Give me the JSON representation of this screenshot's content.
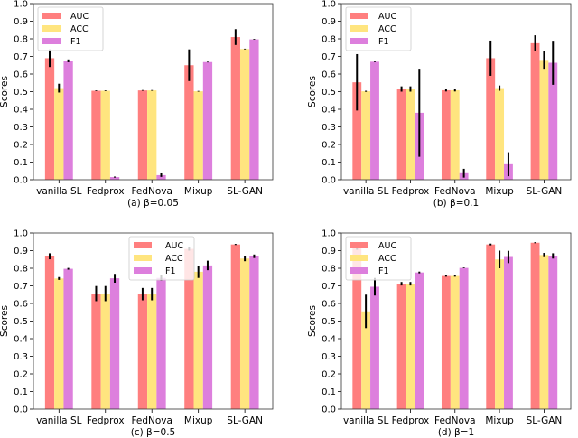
{
  "chart_data": [
    {
      "type": "bar",
      "caption": "(a) β=0.05",
      "ylabel": "Scores",
      "ylim": [
        0,
        1.0
      ],
      "yticks": [
        "0.0",
        "0.1",
        "0.2",
        "0.3",
        "0.4",
        "0.5",
        "0.6",
        "0.7",
        "0.8",
        "0.9",
        "1.0"
      ],
      "categories": [
        "vanilla SL",
        "Fedprox",
        "FedNova",
        "Mixup",
        "SL-GAN"
      ],
      "legend_position": "top-left",
      "series": [
        {
          "name": "AUC",
          "color": "#ff7f7f",
          "values": [
            0.69,
            0.505,
            0.507,
            0.65,
            0.81
          ],
          "errors": [
            0.05,
            0.002,
            0.002,
            0.09,
            0.045
          ]
        },
        {
          "name": "ACC",
          "color": "#ffe57f",
          "values": [
            0.52,
            0.505,
            0.507,
            0.502,
            0.742
          ],
          "errors": [
            0.025,
            0.002,
            0.002,
            0.002,
            0.002
          ]
        },
        {
          "name": "F1",
          "color": "#dd7fdd",
          "values": [
            0.675,
            0.015,
            0.026,
            0.668,
            0.797
          ],
          "errors": [
            0.008,
            0.003,
            0.01,
            0.002,
            0.002
          ]
        }
      ]
    },
    {
      "type": "bar",
      "caption": "(b) β=0.1",
      "ylabel": "Scores",
      "ylim": [
        0,
        1.0
      ],
      "yticks": [
        "0.0",
        "0.1",
        "0.2",
        "0.3",
        "0.4",
        "0.5",
        "0.6",
        "0.7",
        "0.8",
        "0.9",
        "1.0"
      ],
      "categories": [
        "vanilla SL",
        "Fedprox",
        "FedNova",
        "Mixup",
        "SL-GAN"
      ],
      "legend_position": "top-left",
      "series": [
        {
          "name": "AUC",
          "color": "#ff7f7f",
          "values": [
            0.553,
            0.515,
            0.508,
            0.69,
            0.775
          ],
          "errors": [
            0.16,
            0.015,
            0.007,
            0.1,
            0.045
          ]
        },
        {
          "name": "ACC",
          "color": "#ffe57f",
          "values": [
            0.502,
            0.515,
            0.508,
            0.52,
            0.68
          ],
          "errors": [
            0.003,
            0.015,
            0.007,
            0.015,
            0.05
          ]
        },
        {
          "name": "F1",
          "color": "#dd7fdd",
          "values": [
            0.67,
            0.38,
            0.037,
            0.088,
            0.664
          ],
          "errors": [
            0.002,
            0.25,
            0.025,
            0.068,
            0.125
          ]
        }
      ]
    },
    {
      "type": "bar",
      "caption": "(c) β=0.5",
      "ylabel": "Scores",
      "ylim": [
        0,
        1.0
      ],
      "yticks": [
        "0.0",
        "0.1",
        "0.2",
        "0.3",
        "0.4",
        "0.5",
        "0.6",
        "0.7",
        "0.8",
        "0.9",
        "1.0"
      ],
      "categories": [
        "vanilla SL",
        "Fedprox",
        "FedNova",
        "Mixup",
        "SL-GAN"
      ],
      "legend_position": "top-center",
      "series": [
        {
          "name": "AUC",
          "color": "#ff7f7f",
          "values": [
            0.868,
            0.656,
            0.653,
            0.91,
            0.935
          ],
          "errors": [
            0.017,
            0.043,
            0.035,
            0.01,
            0.003
          ]
        },
        {
          "name": "ACC",
          "color": "#ffe57f",
          "values": [
            0.742,
            0.656,
            0.653,
            0.78,
            0.855
          ],
          "errors": [
            0.008,
            0.043,
            0.035,
            0.035,
            0.015
          ]
        },
        {
          "name": "F1",
          "color": "#dd7fdd",
          "values": [
            0.797,
            0.743,
            0.745,
            0.816,
            0.868
          ],
          "errors": [
            0.005,
            0.025,
            0.015,
            0.027,
            0.01
          ]
        }
      ]
    },
    {
      "type": "bar",
      "caption": "(d) β=1",
      "ylabel": "Scores",
      "ylim": [
        0,
        1.0
      ],
      "yticks": [
        "0.0",
        "0.1",
        "0.2",
        "0.3",
        "0.4",
        "0.5",
        "0.6",
        "0.7",
        "0.8",
        "0.9",
        "1.0"
      ],
      "categories": [
        "vanilla SL",
        "Fedprox",
        "FedNova",
        "Mixup",
        "SL-GAN"
      ],
      "legend_position": "top-left",
      "series": [
        {
          "name": "AUC",
          "color": "#ff7f7f",
          "values": [
            0.915,
            0.712,
            0.756,
            0.935,
            0.945
          ],
          "errors": [
            0.01,
            0.01,
            0.004,
            0.005,
            0.003
          ]
        },
        {
          "name": "ACC",
          "color": "#ffe57f",
          "values": [
            0.555,
            0.712,
            0.756,
            0.85,
            0.875
          ],
          "errors": [
            0.095,
            0.01,
            0.004,
            0.05,
            0.012
          ]
        },
        {
          "name": "F1",
          "color": "#dd7fdd",
          "values": [
            0.695,
            0.776,
            0.802,
            0.864,
            0.87
          ],
          "errors": [
            0.05,
            0.005,
            0.002,
            0.035,
            0.015
          ]
        }
      ]
    }
  ]
}
